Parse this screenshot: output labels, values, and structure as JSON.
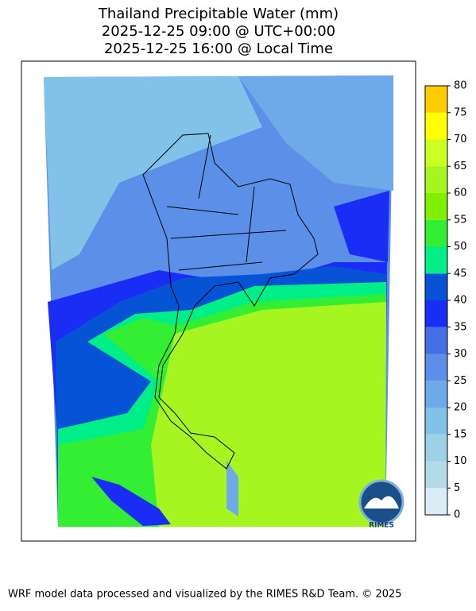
{
  "title": [
    "Thailand Precipitable Water (mm)",
    "2025-12-25 09:00 @ UTC+00:00",
    "2025-12-25 16:00 @ Local Time"
  ],
  "colorbar": {
    "ticks": [
      0,
      5,
      10,
      15,
      20,
      25,
      30,
      35,
      40,
      45,
      50,
      55,
      60,
      65,
      70,
      75,
      80
    ],
    "colors": [
      "#dcecf7",
      "#b4dae8",
      "#9dd1e6",
      "#83c2e8",
      "#6ea9ea",
      "#5b8fe8",
      "#466fe4",
      "#1a2df4",
      "#0653d6",
      "#00ee88",
      "#33ee33",
      "#80f000",
      "#a6f520",
      "#ccff22",
      "#ffff00",
      "#ffcc00"
    ]
  },
  "logo": "RIMES",
  "footer": "WRF model data processed and visualized by the RIMES R&D Team. © 2025"
}
